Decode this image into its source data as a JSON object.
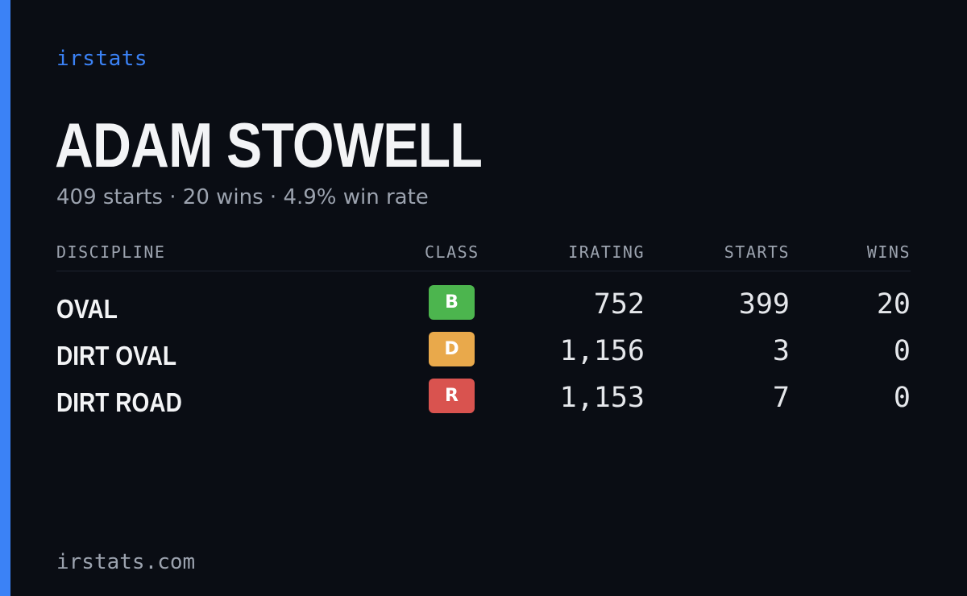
{
  "brand": "irstats",
  "player": {
    "name": "ADAM STOWELL",
    "summary": "409 starts · 20 wins · 4.9% win rate"
  },
  "table": {
    "headers": {
      "discipline": "DISCIPLINE",
      "class": "CLASS",
      "irating": "IRATING",
      "starts": "STARTS",
      "wins": "WINS"
    },
    "rows": [
      {
        "discipline": "OVAL",
        "class": "B",
        "class_color": "#4cb54e",
        "irating": "752",
        "starts": "399",
        "wins": "20"
      },
      {
        "discipline": "DIRT OVAL",
        "class": "D",
        "class_color": "#e9a94b",
        "irating": "1,156",
        "starts": "3",
        "wins": "0"
      },
      {
        "discipline": "DIRT ROAD",
        "class": "R",
        "class_color": "#d9534f",
        "irating": "1,153",
        "starts": "7",
        "wins": "0"
      }
    ]
  },
  "footer": "irstats.com",
  "colors": {
    "background": "#0a0d14",
    "accent": "#3b82f6"
  }
}
